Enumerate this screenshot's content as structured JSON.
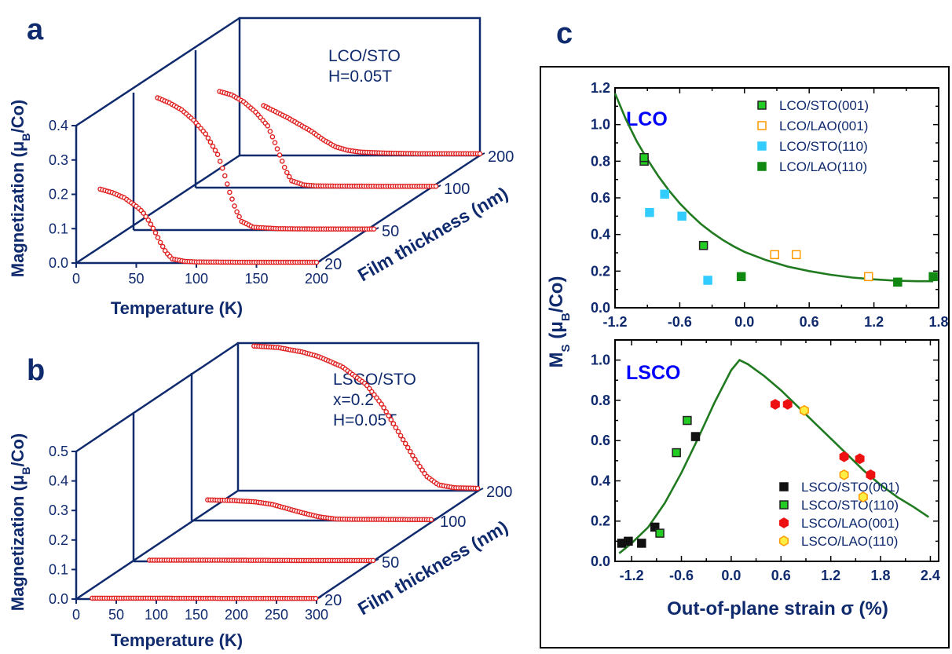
{
  "chart_data": [
    {
      "panel_label": "a",
      "type": "line",
      "annotation": [
        "LCO/STO",
        "H=0.05T"
      ],
      "xlabel": "Temperature (K)",
      "ylabel": "Magnetization (μB/Co)",
      "zlabel": "Film thickness (nm)",
      "x_ticks": [
        "0",
        "50",
        "100",
        "150",
        "200"
      ],
      "y_ticks": [
        "0.0",
        "0.1",
        "0.2",
        "0.3",
        "0.4"
      ],
      "z_ticks": [
        "20",
        "50",
        "100",
        "200"
      ],
      "xlim": [
        0,
        200
      ],
      "ylim": [
        0,
        0.4
      ],
      "marker_color": "#e02020",
      "frame_color": "#102a6e",
      "series": [
        {
          "thickness": 20,
          "points": [
            [
              20,
              0.215
            ],
            [
              30,
              0.205
            ],
            [
              40,
              0.19
            ],
            [
              50,
              0.165
            ],
            [
              55,
              0.15
            ],
            [
              60,
              0.125
            ],
            [
              65,
              0.095
            ],
            [
              70,
              0.06
            ],
            [
              75,
              0.03
            ],
            [
              80,
              0.012
            ],
            [
              90,
              0.005
            ],
            [
              100,
              0.003
            ],
            [
              150,
              0.002
            ],
            [
              200,
              0.002
            ]
          ]
        },
        {
          "thickness": 50,
          "points": [
            [
              20,
              0.385
            ],
            [
              30,
              0.37
            ],
            [
              40,
              0.35
            ],
            [
              50,
              0.32
            ],
            [
              60,
              0.28
            ],
            [
              70,
              0.22
            ],
            [
              75,
              0.17
            ],
            [
              80,
              0.11
            ],
            [
              85,
              0.06
            ],
            [
              90,
              0.025
            ],
            [
              100,
              0.008
            ],
            [
              120,
              0.004
            ],
            [
              150,
              0.003
            ],
            [
              200,
              0.003
            ]
          ]
        },
        {
          "thickness": 100,
          "points": [
            [
              20,
              0.28
            ],
            [
              30,
              0.27
            ],
            [
              40,
              0.25
            ],
            [
              50,
              0.22
            ],
            [
              60,
              0.18
            ],
            [
              65,
              0.14
            ],
            [
              70,
              0.095
            ],
            [
              75,
              0.05
            ],
            [
              80,
              0.02
            ],
            [
              90,
              0.008
            ],
            [
              100,
              0.005
            ],
            [
              150,
              0.004
            ],
            [
              200,
              0.004
            ]
          ]
        },
        {
          "thickness": 200,
          "points": [
            [
              20,
              0.145
            ],
            [
              40,
              0.11
            ],
            [
              60,
              0.07
            ],
            [
              70,
              0.045
            ],
            [
              80,
              0.025
            ],
            [
              90,
              0.015
            ],
            [
              100,
              0.01
            ],
            [
              120,
              0.007
            ],
            [
              150,
              0.005
            ],
            [
              200,
              0.005
            ]
          ]
        }
      ]
    },
    {
      "panel_label": "b",
      "type": "line",
      "annotation": [
        "LSCO/STO",
        "x=0.2",
        "H=0.05T"
      ],
      "xlabel": "Temperature (K)",
      "ylabel": "Magnetization (μB/Co)",
      "zlabel": "Film thickness (nm)",
      "x_ticks": [
        "0",
        "50",
        "100",
        "150",
        "200",
        "250",
        "300"
      ],
      "y_ticks": [
        "0.0",
        "0.1",
        "0.2",
        "0.3",
        "0.4",
        "0.5"
      ],
      "z_ticks": [
        "20",
        "50",
        "100",
        "200"
      ],
      "xlim": [
        0,
        300
      ],
      "ylim": [
        0,
        0.5
      ],
      "marker_color": "#e02020",
      "frame_color": "#102a6e",
      "series": [
        {
          "thickness": 20,
          "points": [
            [
              20,
              0.003
            ],
            [
              100,
              0.003
            ],
            [
              200,
              0.002
            ],
            [
              300,
              0.002
            ]
          ]
        },
        {
          "thickness": 50,
          "points": [
            [
              20,
              0.004
            ],
            [
              100,
              0.004
            ],
            [
              200,
              0.003
            ],
            [
              300,
              0.003
            ]
          ]
        },
        {
          "thickness": 100,
          "points": [
            [
              20,
              0.07
            ],
            [
              50,
              0.068
            ],
            [
              80,
              0.063
            ],
            [
              100,
              0.055
            ],
            [
              120,
              0.04
            ],
            [
              140,
              0.025
            ],
            [
              160,
              0.012
            ],
            [
              180,
              0.005
            ],
            [
              200,
              0.004
            ],
            [
              300,
              0.003
            ]
          ]
        },
        {
          "thickness": 200,
          "points": [
            [
              20,
              0.49
            ],
            [
              50,
              0.485
            ],
            [
              80,
              0.47
            ],
            [
              100,
              0.455
            ],
            [
              130,
              0.42
            ],
            [
              160,
              0.36
            ],
            [
              180,
              0.29
            ],
            [
              200,
              0.2
            ],
            [
              220,
              0.11
            ],
            [
              235,
              0.05
            ],
            [
              250,
              0.02
            ],
            [
              270,
              0.01
            ],
            [
              300,
              0.008
            ]
          ]
        }
      ]
    },
    {
      "panel_label": "c",
      "type": "scatter",
      "subtitle": "LCO",
      "xlabel": "Out-of-plane strain σ (%)",
      "ylabel": "MS (μB/Co)",
      "xlim": [
        -1.2,
        1.8
      ],
      "ylim": [
        0,
        1.2
      ],
      "x_ticks": [
        "-1.2",
        "-0.6",
        "0.0",
        "0.6",
        "1.2",
        "1.8"
      ],
      "y_ticks": [
        "0.0",
        "0.2",
        "0.4",
        "0.6",
        "0.8",
        "1.0",
        "1.2"
      ],
      "series": [
        {
          "name": "LCO/STO(001)",
          "marker": "square",
          "fill": "#22cc22",
          "stroke": "#222222",
          "points": [
            [
              -0.93,
              0.8
            ],
            [
              -0.93,
              0.82
            ],
            [
              -0.38,
              0.34
            ]
          ]
        },
        {
          "name": "LCO/LAO(001)",
          "marker": "square-open",
          "fill": "#ffffff",
          "stroke": "#ff9900",
          "points": [
            [
              0.28,
              0.29
            ],
            [
              0.48,
              0.29
            ],
            [
              1.15,
              0.17
            ]
          ]
        },
        {
          "name": "LCO/STO(110)",
          "marker": "square",
          "fill": "#33ccff",
          "stroke": "#33ccff",
          "points": [
            [
              -0.88,
              0.52
            ],
            [
              -0.74,
              0.62
            ],
            [
              -0.58,
              0.5
            ],
            [
              -0.34,
              0.15
            ]
          ]
        },
        {
          "name": "LCO/LAO(110)",
          "marker": "square",
          "fill": "#118811",
          "stroke": "#118811",
          "points": [
            [
              -0.03,
              0.17
            ],
            [
              1.42,
              0.14
            ],
            [
              1.75,
              0.17
            ]
          ]
        }
      ],
      "fit_curve": {
        "color": "#207a20",
        "points": [
          [
            -1.2,
            1.17
          ],
          [
            -1.1,
            1.03
          ],
          [
            -1.0,
            0.91
          ],
          [
            -0.9,
            0.81
          ],
          [
            -0.8,
            0.72
          ],
          [
            -0.7,
            0.64
          ],
          [
            -0.6,
            0.57
          ],
          [
            -0.5,
            0.51
          ],
          [
            -0.4,
            0.455
          ],
          [
            -0.3,
            0.41
          ],
          [
            -0.2,
            0.37
          ],
          [
            -0.1,
            0.335
          ],
          [
            0.0,
            0.305
          ],
          [
            0.2,
            0.26
          ],
          [
            0.4,
            0.225
          ],
          [
            0.6,
            0.2
          ],
          [
            0.8,
            0.18
          ],
          [
            1.0,
            0.165
          ],
          [
            1.2,
            0.155
          ],
          [
            1.4,
            0.148
          ],
          [
            1.6,
            0.145
          ],
          [
            1.75,
            0.145
          ]
        ]
      }
    },
    {
      "panel_label": "",
      "type": "scatter",
      "subtitle": "LSCO",
      "xlabel": "Out-of-plane strain σ (%)",
      "ylabel": "MS (μB/Co)",
      "xlim": [
        -1.4,
        2.5
      ],
      "ylim": [
        0,
        1.1
      ],
      "x_ticks": [
        "-1.2",
        "-0.6",
        "0.0",
        "0.6",
        "1.2",
        "1.8",
        "2.4"
      ],
      "y_ticks": [
        "0.0",
        "0.2",
        "0.4",
        "0.6",
        "0.8",
        "1.0"
      ],
      "series": [
        {
          "name": "LSCO/STO(001)",
          "marker": "square",
          "fill": "#111111",
          "stroke": "#111111",
          "points": [
            [
              -1.32,
              0.09
            ],
            [
              -1.24,
              0.1
            ],
            [
              -1.08,
              0.09
            ],
            [
              -0.92,
              0.17
            ],
            [
              -0.43,
              0.62
            ]
          ]
        },
        {
          "name": "LSCO/STO(110)",
          "marker": "square",
          "fill": "#22cc22",
          "stroke": "#222222",
          "points": [
            [
              -0.86,
              0.14
            ],
            [
              -0.66,
              0.54
            ],
            [
              -0.53,
              0.7
            ]
          ]
        },
        {
          "name": "LSCO/LAO(001)",
          "marker": "hexagon",
          "fill": "#ee1111",
          "stroke": "#ee1111",
          "points": [
            [
              0.53,
              0.78
            ],
            [
              0.68,
              0.78
            ],
            [
              1.36,
              0.52
            ],
            [
              1.55,
              0.51
            ],
            [
              1.68,
              0.43
            ]
          ]
        },
        {
          "name": "LSCO/LAO(110)",
          "marker": "hexagon",
          "fill": "#ffee44",
          "stroke": "#ff9900",
          "points": [
            [
              0.88,
              0.75
            ],
            [
              1.36,
              0.43
            ],
            [
              1.59,
              0.32
            ]
          ]
        }
      ],
      "fit_curve": {
        "color": "#207a20",
        "points": [
          [
            -1.35,
            0.04
          ],
          [
            -1.2,
            0.09
          ],
          [
            -1.0,
            0.17
          ],
          [
            -0.8,
            0.29
          ],
          [
            -0.6,
            0.44
          ],
          [
            -0.4,
            0.61
          ],
          [
            -0.2,
            0.79
          ],
          [
            0.0,
            0.95
          ],
          [
            0.1,
            1.0
          ],
          [
            0.2,
            0.98
          ],
          [
            0.4,
            0.92
          ],
          [
            0.6,
            0.85
          ],
          [
            0.8,
            0.77
          ],
          [
            1.0,
            0.69
          ],
          [
            1.2,
            0.61
          ],
          [
            1.4,
            0.53
          ],
          [
            1.6,
            0.45
          ],
          [
            1.8,
            0.38
          ],
          [
            2.0,
            0.32
          ],
          [
            2.2,
            0.27
          ],
          [
            2.38,
            0.22
          ]
        ]
      }
    }
  ]
}
